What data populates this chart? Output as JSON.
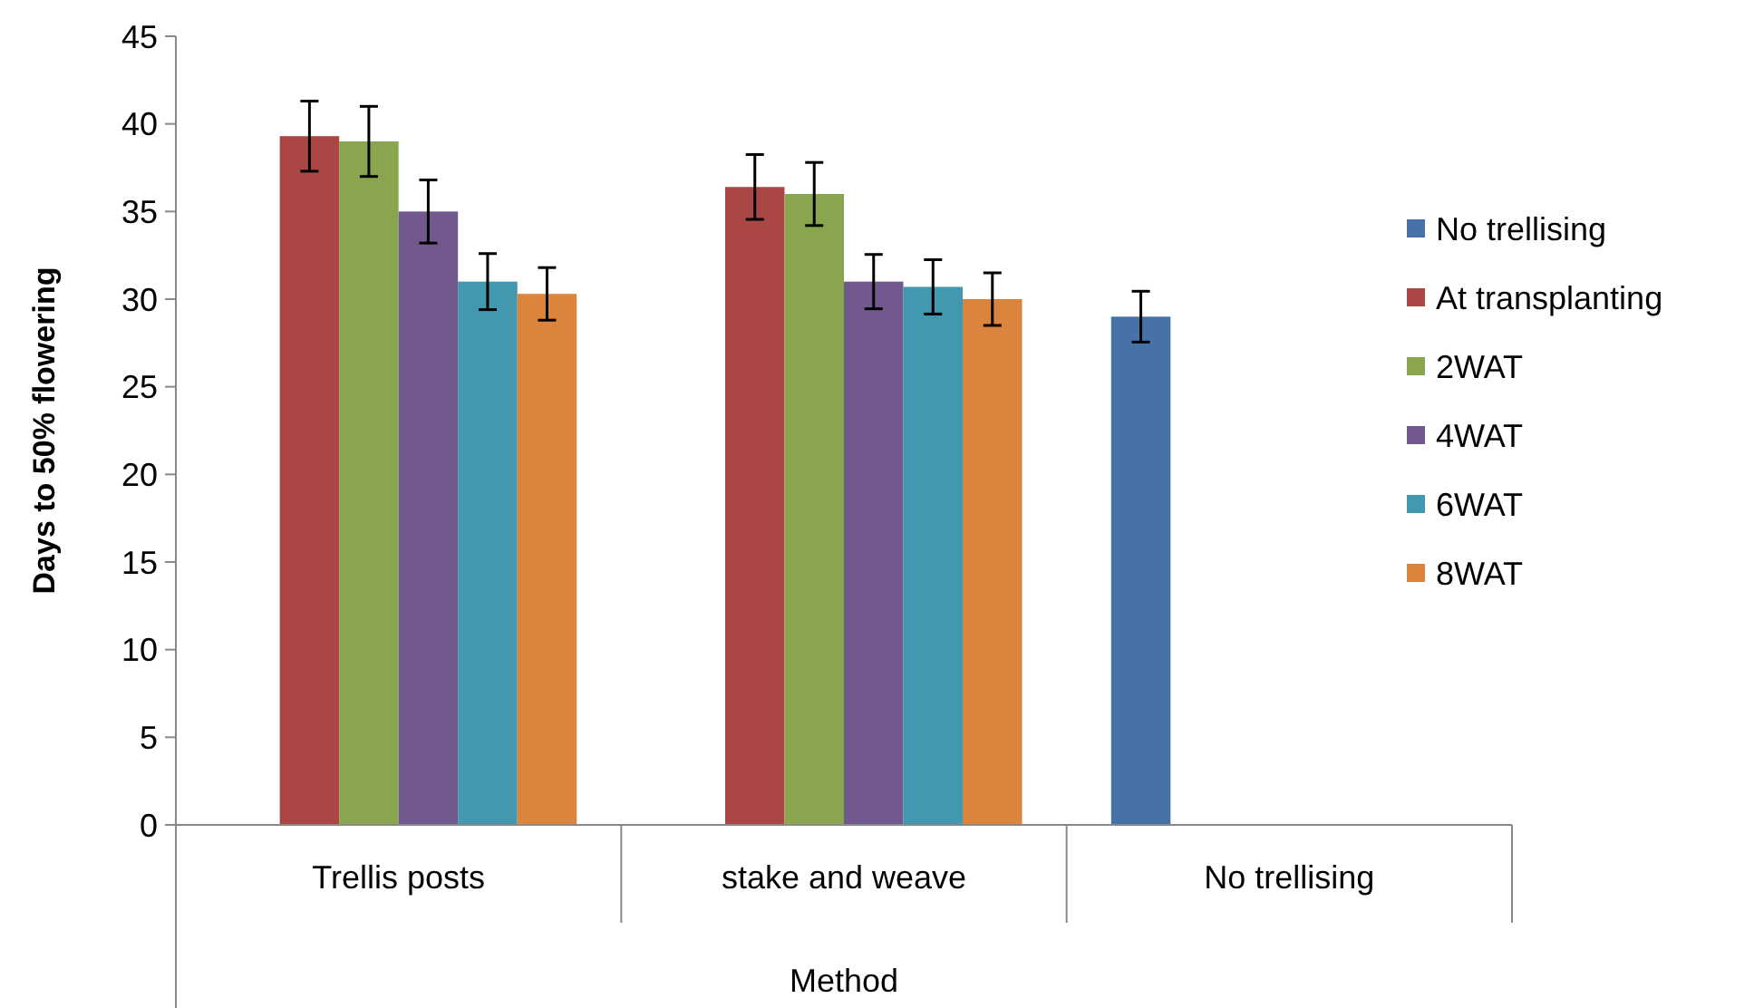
{
  "chart_data": {
    "type": "bar",
    "xlabel": "Method",
    "ylabel": "Days to 50% flowering",
    "categories": [
      "Trellis posts",
      "stake and weave",
      "No trellising"
    ],
    "series": [
      {
        "name": "No trellising",
        "color": "#4672a8",
        "values": [
          null,
          null,
          29.0
        ],
        "errors": [
          null,
          null,
          1.45
        ]
      },
      {
        "name": "At transplanting",
        "color": "#aa4643",
        "values": [
          39.3,
          36.4,
          null
        ],
        "errors": [
          2.0,
          1.85,
          null
        ]
      },
      {
        "name": "2WAT",
        "color": "#89a54e",
        "values": [
          39.0,
          36.0,
          null
        ],
        "errors": [
          2.0,
          1.8,
          null
        ]
      },
      {
        "name": "4WAT",
        "color": "#71588f",
        "values": [
          35.0,
          31.0,
          null
        ],
        "errors": [
          1.8,
          1.55,
          null
        ]
      },
      {
        "name": "6WAT",
        "color": "#4198af",
        "values": [
          31.0,
          30.7,
          null
        ],
        "errors": [
          1.6,
          1.55,
          null
        ]
      },
      {
        "name": "8WAT",
        "color": "#db843d",
        "values": [
          30.3,
          30.0,
          null
        ],
        "errors": [
          1.5,
          1.5,
          null
        ]
      }
    ],
    "ylim": [
      0,
      45
    ],
    "yticks": [
      0,
      5,
      10,
      15,
      20,
      25,
      30,
      35,
      40,
      45
    ],
    "grid": false,
    "legend": "right"
  }
}
